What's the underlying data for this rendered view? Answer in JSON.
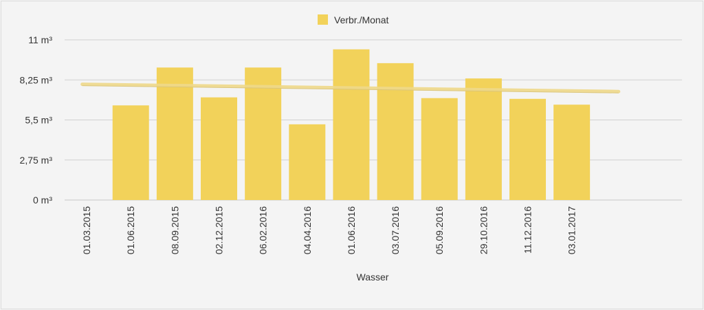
{
  "chart_data": {
    "type": "bar",
    "xlabel": "Wasser",
    "ylabel": "",
    "ylim": [
      0,
      11
    ],
    "yticks": [
      "0 m³",
      "2,75 m³",
      "5,5 m³",
      "8,25 m³",
      "11 m³"
    ],
    "ytick_values": [
      0,
      2.75,
      5.5,
      8.25,
      11
    ],
    "grid": true,
    "legend": "top-center",
    "categories": [
      "01.03.2015",
      "01.06.2015",
      "08.09.2015",
      "02.12.2015",
      "06.02.2016",
      "04.04.2016",
      "01.06.2016",
      "03.07.2016",
      "05.09.2016",
      "29.10.2016",
      "11.12.2016",
      "03.01.2017",
      "",
      ""
    ],
    "series": [
      {
        "name": "Verbr./Monat",
        "color": "#f2d25a",
        "values": [
          null,
          6.5,
          9.1,
          7.05,
          9.1,
          5.2,
          10.35,
          9.4,
          7.0,
          8.35,
          6.95,
          6.55,
          null,
          null
        ]
      }
    ],
    "trendline": {
      "color": "#efd98a",
      "start": 7.95,
      "end": 7.45
    }
  }
}
